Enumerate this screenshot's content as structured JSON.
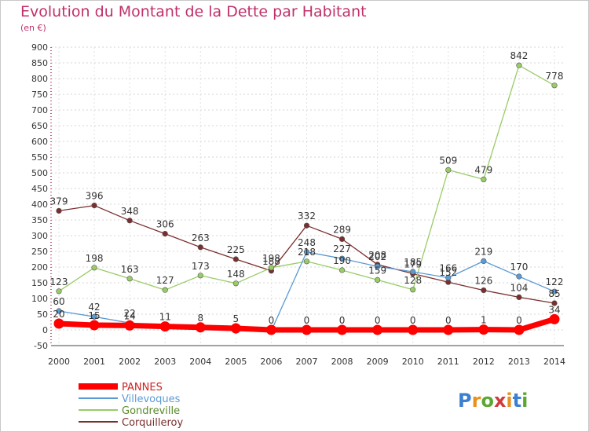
{
  "chart_data": {
    "type": "line",
    "title": "Evolution du Montant de la Dette par Habitant",
    "subtitle": "(en €)",
    "xlabel": "",
    "ylabel": "",
    "x": [
      "2000",
      "2001",
      "2002",
      "2003",
      "2004",
      "2005",
      "2006",
      "2007",
      "2008",
      "2009",
      "2010",
      "2011",
      "2012",
      "2013",
      "2014"
    ],
    "ylim": [
      -50,
      900
    ],
    "yticks": [
      "-50",
      "0",
      "50",
      "100",
      "150",
      "200",
      "250",
      "300",
      "350",
      "400",
      "450",
      "500",
      "550",
      "600",
      "650",
      "700",
      "750",
      "800",
      "850",
      "900"
    ],
    "grid": true,
    "legend_position": "bottom-left",
    "series": [
      {
        "name": "PANNES",
        "color": "#ff0000",
        "values": [
          20,
          15,
          14,
          11,
          8,
          5,
          0,
          0,
          0,
          0,
          0,
          0,
          1,
          0,
          34
        ],
        "labels": [
          "20",
          "15",
          "14",
          "11",
          "8",
          "5",
          "0",
          "0",
          "0",
          "0",
          "0",
          "0",
          "1",
          "0",
          "34"
        ]
      },
      {
        "name": "Villevoques",
        "color": "#5b9bd5",
        "values": [
          60,
          42,
          22,
          9,
          1,
          -3,
          -3,
          248,
          227,
          202,
          185,
          166,
          219,
          170,
          122
        ],
        "labels": [
          "60",
          "42",
          "22",
          "",
          "",
          "",
          "",
          "248",
          "227",
          "202",
          "185",
          "166",
          "219",
          "170",
          "122"
        ]
      },
      {
        "name": "Gondreville",
        "color": "#99cc66",
        "values": [
          123,
          198,
          163,
          127,
          173,
          148,
          198,
          218,
          190,
          159,
          128,
          509,
          479,
          842,
          778
        ],
        "labels": [
          "123",
          "198",
          "163",
          "127",
          "173",
          "148",
          "198",
          "218",
          "190",
          "159",
          "128",
          "509",
          "479",
          "842",
          "778"
        ]
      },
      {
        "name": "Corquilleroy",
        "color": "#7b2e2e",
        "values": [
          379,
          396,
          348,
          306,
          263,
          225,
          188,
          332,
          289,
          208,
          179,
          152,
          126,
          104,
          85
        ],
        "labels": [
          "379",
          "396",
          "348",
          "306",
          "263",
          "225",
          "188",
          "332",
          "289",
          "208",
          "179",
          "152",
          "126",
          "104",
          "85"
        ]
      }
    ]
  },
  "watermark": {
    "text": "Proxiti",
    "letter_colors": [
      "#3a7fd0",
      "#e89020",
      "#5aa832",
      "#d03a3a",
      "#e89020",
      "#3a7fd0",
      "#5aa832"
    ]
  }
}
